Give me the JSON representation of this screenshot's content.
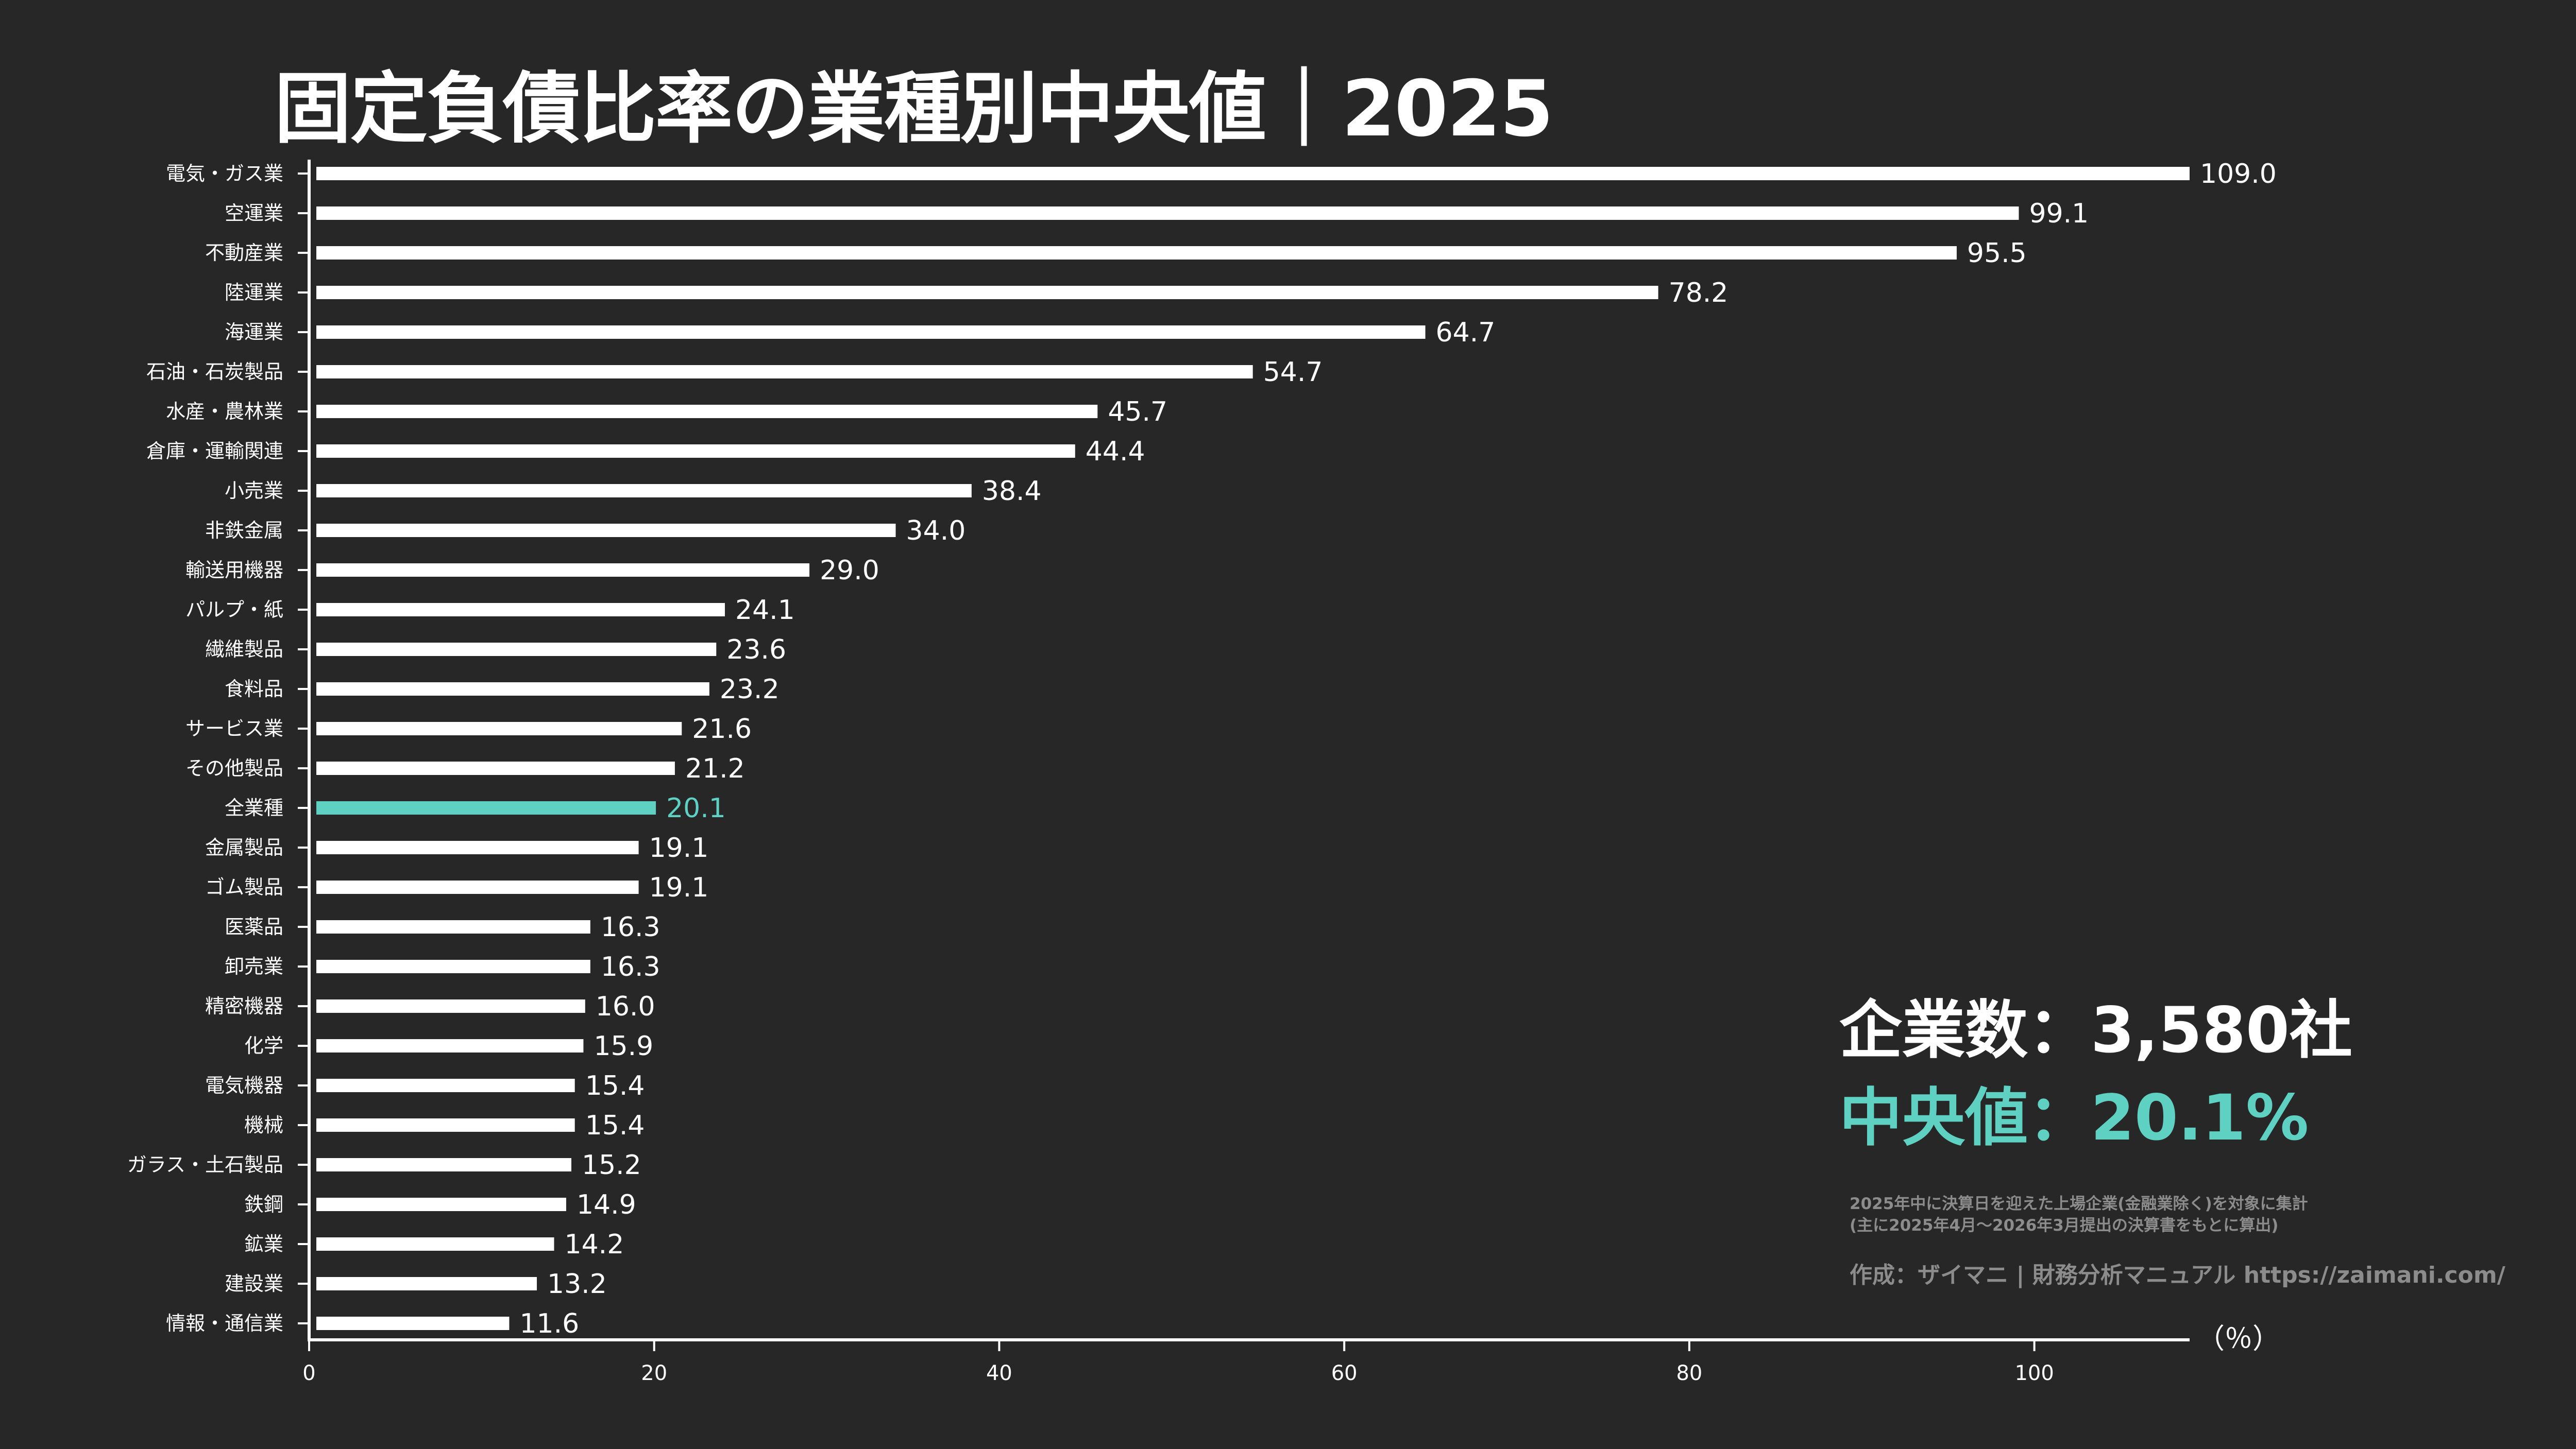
{
  "title": "固定負債比率の業種別中央値｜2025",
  "stats": {
    "companies": "企業数：3,580社",
    "median": "中央値：20.1%"
  },
  "note": {
    "line1": "2025年中に決算日を迎えた上場企業(金融業除く)を対象に集計",
    "line2": "(主に2025年4月〜2026年3月提出の決算書をもとに算出)"
  },
  "credit": "作成：ザイマニ | 財務分析マニュアル https://zaimani.com/",
  "colors": {
    "background": "#272727",
    "bar": "#ffffff",
    "highlight": "#5ed1c2",
    "muted": "#8c8c8c"
  },
  "chart_data": {
    "type": "bar",
    "orientation": "horizontal",
    "categories": [
      "電気・ガス業",
      "空運業",
      "不動産業",
      "陸運業",
      "海運業",
      "石油・石炭製品",
      "水産・農林業",
      "倉庫・運輸関連",
      "小売業",
      "非鉄金属",
      "輸送用機器",
      "パルプ・紙",
      "繊維製品",
      "食料品",
      "サービス業",
      "その他製品",
      "全業種",
      "金属製品",
      "ゴム製品",
      "医薬品",
      "卸売業",
      "精密機器",
      "化学",
      "電気機器",
      "機械",
      "ガラス・土石製品",
      "鉄鋼",
      "鉱業",
      "建設業",
      "情報・通信業"
    ],
    "values": [
      109.0,
      99.1,
      95.5,
      78.2,
      64.7,
      54.7,
      45.7,
      44.4,
      38.4,
      34.0,
      29.0,
      24.1,
      23.6,
      23.2,
      21.6,
      21.2,
      20.1,
      19.1,
      19.1,
      16.3,
      16.3,
      16.0,
      15.9,
      15.4,
      15.4,
      15.2,
      14.9,
      14.2,
      13.2,
      11.6
    ],
    "value_labels": [
      "109.0",
      "99.1",
      "95.5",
      "78.2",
      "64.7",
      "54.7",
      "45.7",
      "44.4",
      "38.4",
      "34.0",
      "29.0",
      "24.1",
      "23.6",
      "23.2",
      "21.6",
      "21.2",
      "20.1",
      "19.1",
      "19.1",
      "16.3",
      "16.3",
      "16.0",
      "15.9",
      "15.4",
      "15.4",
      "15.2",
      "14.9",
      "14.2",
      "13.2",
      "11.6"
    ],
    "highlight_category": "全業種",
    "xlim": [
      0,
      109
    ],
    "xticks": [
      0,
      20,
      40,
      60,
      80,
      100
    ],
    "xtick_labels": [
      "0",
      "20",
      "40",
      "60",
      "80",
      "100"
    ],
    "xlabel": "（％）",
    "grid": false,
    "legend": false
  }
}
